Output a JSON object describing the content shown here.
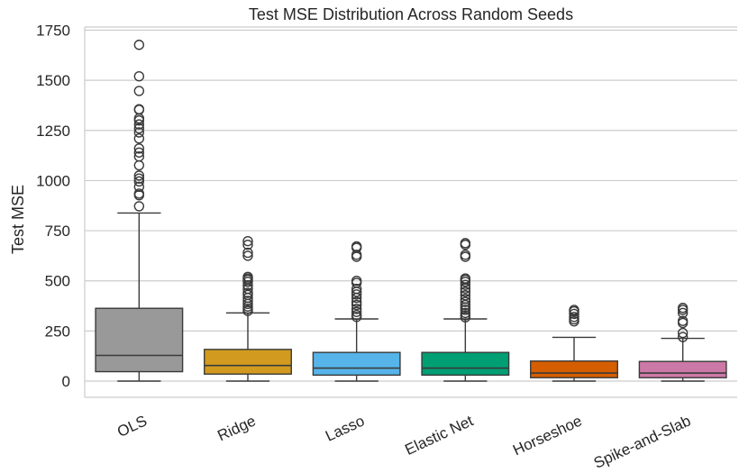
{
  "chart_data": {
    "type": "box",
    "title": "Test MSE Distribution Across Random Seeds",
    "xlabel": "",
    "ylabel": "Test MSE",
    "ylim": [
      -75,
      1760
    ],
    "yticks": [
      0,
      250,
      500,
      750,
      1000,
      1250,
      1500,
      1750
    ],
    "grid": "horizontal",
    "categories": [
      "OLS",
      "Ridge",
      "Lasso",
      "Elastic Net",
      "Horseshoe",
      "Spike-and-Slab"
    ],
    "series": [
      {
        "category": "OLS",
        "color": "#999999",
        "min": 0,
        "q1": 47,
        "median": 128,
        "q3": 363,
        "max": 838,
        "outliers": [
          872,
          927,
          935,
          969,
          996,
          1010,
          1025,
          1076,
          1120,
          1140,
          1160,
          1210,
          1240,
          1260,
          1280,
          1300,
          1310,
          1353,
          1356,
          1447,
          1520,
          1677
        ]
      },
      {
        "category": "Ridge",
        "color": "#D29B1F",
        "min": 0,
        "q1": 35,
        "median": 78,
        "q3": 158,
        "max": 340,
        "outliers": [
          350,
          360,
          372,
          385,
          400,
          415,
          430,
          440,
          460,
          478,
          495,
          505,
          512,
          520,
          625,
          640,
          680,
          698
        ]
      },
      {
        "category": "Lasso",
        "color": "#56B4E9",
        "min": 0,
        "q1": 30,
        "median": 65,
        "q3": 143,
        "max": 310,
        "outliers": [
          320,
          330,
          345,
          360,
          380,
          395,
          415,
          432,
          445,
          460,
          490,
          500,
          620,
          630,
          665,
          672
        ]
      },
      {
        "category": "Elastic Net",
        "color": "#009E73",
        "min": 0,
        "q1": 30,
        "median": 65,
        "q3": 143,
        "max": 310,
        "outliers": [
          318,
          328,
          340,
          355,
          368,
          380,
          395,
          410,
          428,
          445,
          462,
          480,
          495,
          505,
          512,
          620,
          630,
          680,
          688
        ]
      },
      {
        "category": "Horseshoe",
        "color": "#D55E00",
        "min": 0,
        "q1": 17,
        "median": 40,
        "q3": 100,
        "max": 218,
        "outliers": [
          298,
          308,
          320,
          335,
          348,
          355
        ]
      },
      {
        "category": "Spike-and-Slab",
        "color": "#CC79A7",
        "min": 0,
        "q1": 17,
        "median": 40,
        "q3": 98,
        "max": 213,
        "outliers": [
          220,
          240,
          290,
          300,
          340,
          355,
          365
        ]
      }
    ]
  }
}
